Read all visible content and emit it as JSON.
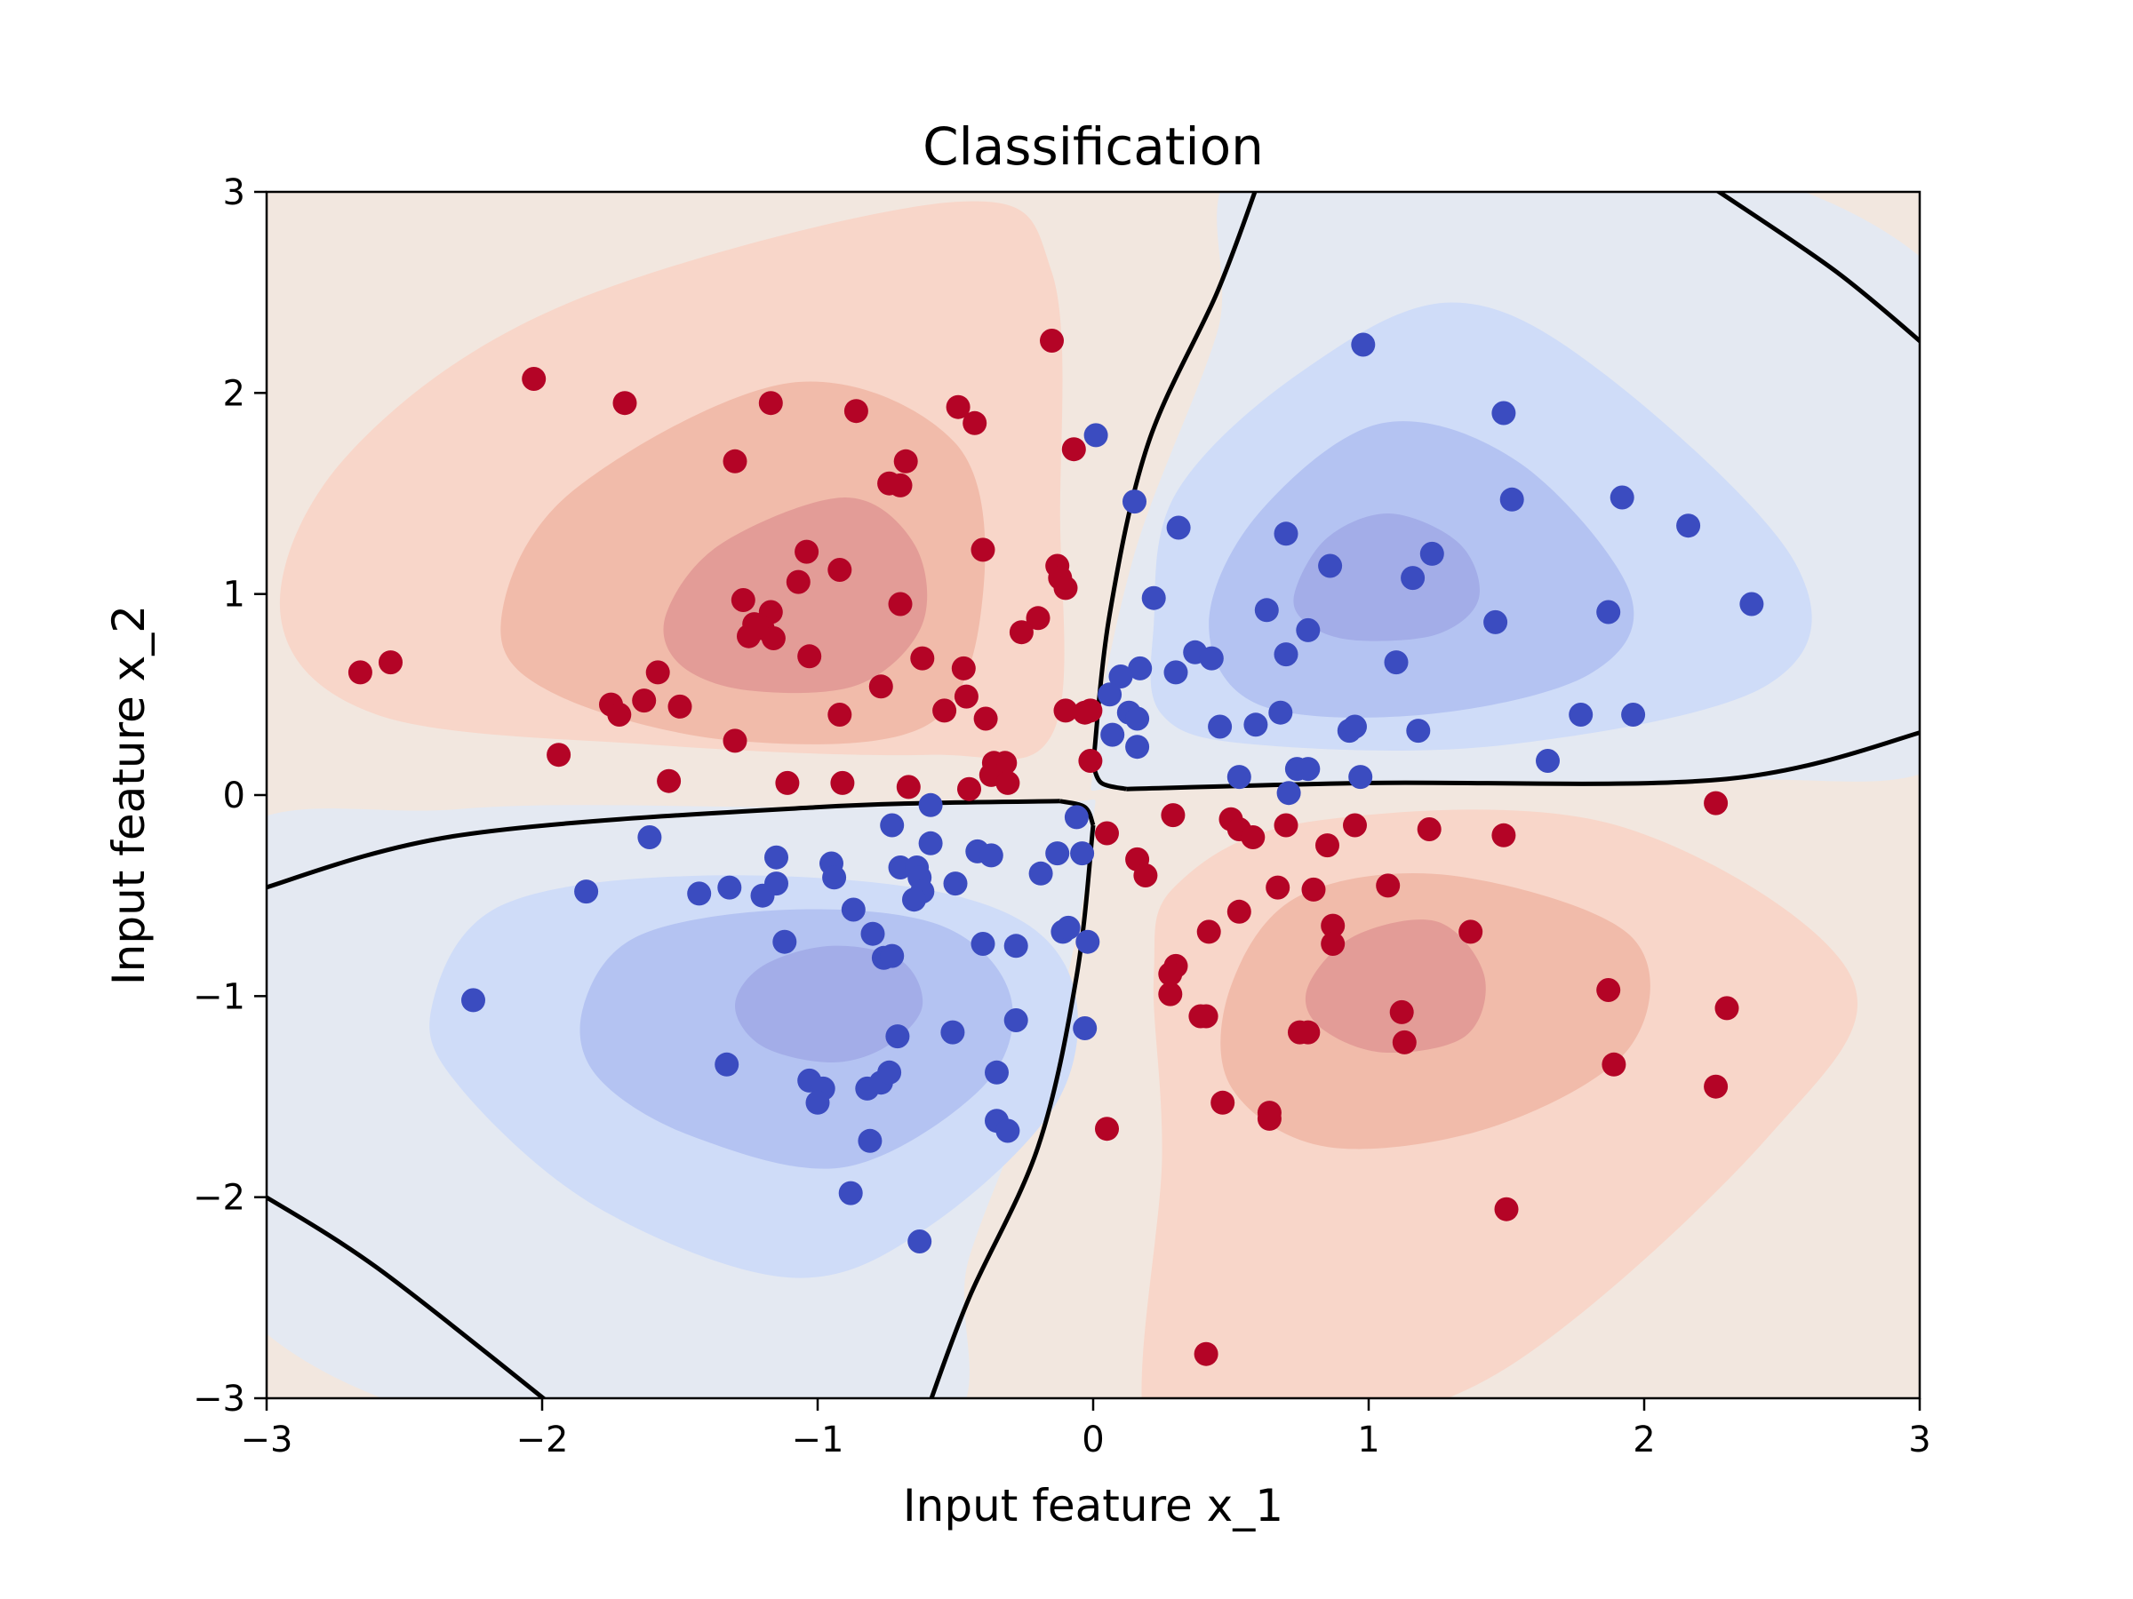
{
  "chart_data": {
    "type": "scatter",
    "title": "Classification",
    "xlabel": "Input feature x_1",
    "ylabel": "Input feature x_2",
    "xlim": [
      -3,
      3
    ],
    "ylim": [
      -3,
      3
    ],
    "x_ticks": [
      -3,
      -2,
      -1,
      0,
      1,
      2,
      3
    ],
    "y_ticks": [
      -3,
      -2,
      -1,
      0,
      1,
      2,
      3
    ],
    "x_tick_labels": [
      "−3",
      "−2",
      "−1",
      "0",
      "1",
      "2",
      "3"
    ],
    "y_tick_labels": [
      "−3",
      "−2",
      "−1",
      "0",
      "1",
      "2",
      "3"
    ],
    "grid": false,
    "colormap": "coolwarm",
    "colors": {
      "class_red": "#b40426",
      "class_blue": "#3b4cc0",
      "red_level_1": "#f2e7df",
      "red_level_2": "#f8d6c9",
      "red_level_3": "#f1bbaa",
      "red_level_4": "#e39c97",
      "blue_level_1": "#e4e9f2",
      "blue_level_2": "#cfdcf8",
      "blue_level_3": "#b4c3f2",
      "blue_level_4": "#a3ade8",
      "boundary": "#000000"
    },
    "series": [
      {
        "color": "#b40426",
        "points": [
          [
            -2.03,
            2.07
          ],
          [
            -1.7,
            1.95
          ],
          [
            -1.17,
            1.95
          ],
          [
            -0.86,
            1.91
          ],
          [
            -0.49,
            1.93
          ],
          [
            -0.43,
            1.85
          ],
          [
            -0.15,
            2.26
          ],
          [
            -1.3,
            1.66
          ],
          [
            -0.68,
            1.66
          ],
          [
            -0.74,
            1.55
          ],
          [
            -0.7,
            1.54
          ],
          [
            -0.07,
            1.72
          ],
          [
            -1.04,
            1.21
          ],
          [
            -0.4,
            1.22
          ],
          [
            -0.92,
            1.12
          ],
          [
            -0.13,
            1.14
          ],
          [
            -0.12,
            1.08
          ],
          [
            -1.07,
            1.06
          ],
          [
            -0.1,
            1.03
          ],
          [
            -1.27,
            0.97
          ],
          [
            -1.17,
            0.91
          ],
          [
            -0.7,
            0.95
          ],
          [
            -1.23,
            0.85
          ],
          [
            -1.2,
            0.83
          ],
          [
            -1.25,
            0.79
          ],
          [
            -1.16,
            0.78
          ],
          [
            -0.2,
            0.88
          ],
          [
            -0.26,
            0.81
          ],
          [
            -1.03,
            0.69
          ],
          [
            -0.62,
            0.68
          ],
          [
            -0.47,
            0.63
          ],
          [
            -2.66,
            0.61
          ],
          [
            -2.55,
            0.66
          ],
          [
            -1.58,
            0.61
          ],
          [
            -0.77,
            0.54
          ],
          [
            -1.75,
            0.45
          ],
          [
            -1.72,
            0.4
          ],
          [
            -1.63,
            0.47
          ],
          [
            -1.5,
            0.44
          ],
          [
            -0.92,
            0.4
          ],
          [
            -0.46,
            0.49
          ],
          [
            -0.54,
            0.42
          ],
          [
            -0.39,
            0.38
          ],
          [
            -0.1,
            0.42
          ],
          [
            -0.03,
            0.41
          ],
          [
            -0.01,
            0.42
          ],
          [
            -1.3,
            0.27
          ],
          [
            -1.94,
            0.2
          ],
          [
            -0.36,
            0.16
          ],
          [
            -0.32,
            0.16
          ],
          [
            -0.37,
            0.1
          ],
          [
            -0.31,
            0.06
          ],
          [
            -0.01,
            0.17
          ],
          [
            -1.54,
            0.07
          ],
          [
            -1.11,
            0.06
          ],
          [
            -0.91,
            0.06
          ],
          [
            -0.67,
            0.04
          ],
          [
            -0.45,
            0.03
          ],
          [
            0.05,
            -0.19
          ],
          [
            0.29,
            -0.1
          ],
          [
            0.5,
            -0.12
          ],
          [
            0.53,
            -0.17
          ],
          [
            0.58,
            -0.21
          ],
          [
            0.7,
            -0.15
          ],
          [
            0.95,
            -0.15
          ],
          [
            1.22,
            -0.17
          ],
          [
            1.49,
            -0.2
          ],
          [
            2.26,
            -0.04
          ],
          [
            0.85,
            -0.25
          ],
          [
            0.16,
            -0.32
          ],
          [
            0.19,
            -0.4
          ],
          [
            0.67,
            -0.46
          ],
          [
            0.8,
            -0.47
          ],
          [
            1.07,
            -0.45
          ],
          [
            0.53,
            -0.58
          ],
          [
            0.87,
            -0.65
          ],
          [
            0.87,
            -0.74
          ],
          [
            0.42,
            -0.68
          ],
          [
            1.37,
            -0.68
          ],
          [
            0.3,
            -0.85
          ],
          [
            0.28,
            -0.89
          ],
          [
            0.28,
            -0.99
          ],
          [
            0.39,
            -1.1
          ],
          [
            0.41,
            -1.1
          ],
          [
            1.12,
            -1.08
          ],
          [
            1.87,
            -0.97
          ],
          [
            2.3,
            -1.06
          ],
          [
            0.75,
            -1.18
          ],
          [
            0.78,
            -1.18
          ],
          [
            1.13,
            -1.23
          ],
          [
            1.89,
            -1.34
          ],
          [
            2.26,
            -1.45
          ],
          [
            0.47,
            -1.53
          ],
          [
            0.64,
            -1.58
          ],
          [
            0.64,
            -1.61
          ],
          [
            0.05,
            -1.66
          ],
          [
            1.5,
            -2.06
          ],
          [
            0.41,
            -2.78
          ]
        ]
      },
      {
        "color": "#3b4cc0",
        "points": [
          [
            0.98,
            2.24
          ],
          [
            1.49,
            1.9
          ],
          [
            0.01,
            1.79
          ],
          [
            0.15,
            1.46
          ],
          [
            1.52,
            1.47
          ],
          [
            1.92,
            1.48
          ],
          [
            0.31,
            1.33
          ],
          [
            0.7,
            1.3
          ],
          [
            2.16,
            1.34
          ],
          [
            1.23,
            1.2
          ],
          [
            0.86,
            1.14
          ],
          [
            1.16,
            1.08
          ],
          [
            0.22,
            0.98
          ],
          [
            0.63,
            0.92
          ],
          [
            0.78,
            0.82
          ],
          [
            1.46,
            0.86
          ],
          [
            1.87,
            0.91
          ],
          [
            2.39,
            0.95
          ],
          [
            0.37,
            0.71
          ],
          [
            0.43,
            0.68
          ],
          [
            0.7,
            0.7
          ],
          [
            1.1,
            0.66
          ],
          [
            0.17,
            0.63
          ],
          [
            0.3,
            0.61
          ],
          [
            0.1,
            0.59
          ],
          [
            0.06,
            0.5
          ],
          [
            0.13,
            0.41
          ],
          [
            0.16,
            0.38
          ],
          [
            0.68,
            0.41
          ],
          [
            0.59,
            0.35
          ],
          [
            0.46,
            0.34
          ],
          [
            0.93,
            0.32
          ],
          [
            0.95,
            0.34
          ],
          [
            1.18,
            0.32
          ],
          [
            1.77,
            0.4
          ],
          [
            1.96,
            0.4
          ],
          [
            0.07,
            0.3
          ],
          [
            0.16,
            0.24
          ],
          [
            0.74,
            0.13
          ],
          [
            0.78,
            0.13
          ],
          [
            0.53,
            0.09
          ],
          [
            0.97,
            0.09
          ],
          [
            1.65,
            0.17
          ],
          [
            0.71,
            0.01
          ],
          [
            -1.61,
            -0.21
          ],
          [
            -0.59,
            -0.05
          ],
          [
            -0.73,
            -0.15
          ],
          [
            -0.06,
            -0.11
          ],
          [
            -0.59,
            -0.24
          ],
          [
            -0.42,
            -0.28
          ],
          [
            -0.37,
            -0.3
          ],
          [
            -0.13,
            -0.29
          ],
          [
            -0.04,
            -0.29
          ],
          [
            -1.15,
            -0.31
          ],
          [
            -0.95,
            -0.34
          ],
          [
            -0.94,
            -0.41
          ],
          [
            -0.7,
            -0.36
          ],
          [
            -0.64,
            -0.36
          ],
          [
            -0.63,
            -0.41
          ],
          [
            -0.19,
            -0.39
          ],
          [
            -1.15,
            -0.44
          ],
          [
            -1.2,
            -0.5
          ],
          [
            -1.32,
            -0.46
          ],
          [
            -1.43,
            -0.49
          ],
          [
            -1.84,
            -0.48
          ],
          [
            -0.62,
            -0.48
          ],
          [
            -0.65,
            -0.52
          ],
          [
            -0.5,
            -0.44
          ],
          [
            -0.87,
            -0.57
          ],
          [
            -0.8,
            -0.69
          ],
          [
            -1.12,
            -0.73
          ],
          [
            -0.4,
            -0.74
          ],
          [
            -0.28,
            -0.75
          ],
          [
            -0.11,
            -0.68
          ],
          [
            -0.09,
            -0.66
          ],
          [
            -0.02,
            -0.73
          ],
          [
            -0.76,
            -0.81
          ],
          [
            -0.73,
            -0.8
          ],
          [
            -2.25,
            -1.02
          ],
          [
            -0.28,
            -1.12
          ],
          [
            -0.51,
            -1.18
          ],
          [
            -0.71,
            -1.2
          ],
          [
            -0.03,
            -1.16
          ],
          [
            -1.33,
            -1.34
          ],
          [
            -1.03,
            -1.42
          ],
          [
            -0.98,
            -1.46
          ],
          [
            -1.0,
            -1.53
          ],
          [
            -0.82,
            -1.46
          ],
          [
            -0.77,
            -1.43
          ],
          [
            -0.74,
            -1.38
          ],
          [
            -0.35,
            -1.38
          ],
          [
            -0.35,
            -1.62
          ],
          [
            -0.31,
            -1.67
          ],
          [
            -0.81,
            -1.72
          ],
          [
            -0.88,
            -1.98
          ],
          [
            -0.63,
            -2.22
          ]
        ]
      }
    ]
  }
}
